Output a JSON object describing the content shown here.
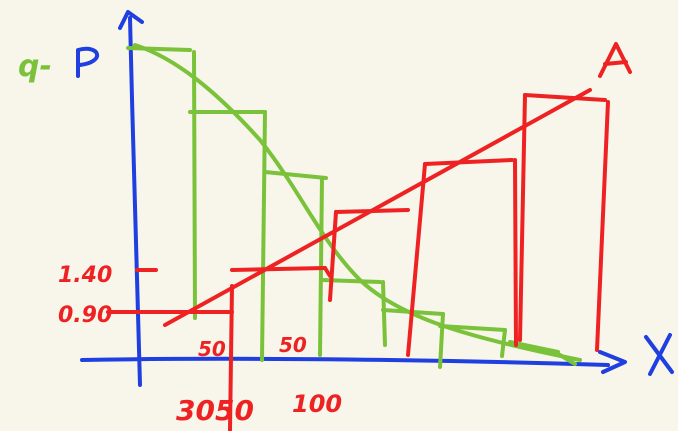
{
  "colors": {
    "background": "#f8f5ea",
    "axis": "#1f3fe0",
    "red": "#ee2222",
    "green": "#79c23a"
  },
  "labels": {
    "q": "q-",
    "p": "P",
    "x_axis": "X",
    "curve_a": "A",
    "price_high": "1.40",
    "price_low": "0.90",
    "step_small_1": "50",
    "step_small_2": "50",
    "tick_3050": "3050",
    "tick_100": "100"
  }
}
